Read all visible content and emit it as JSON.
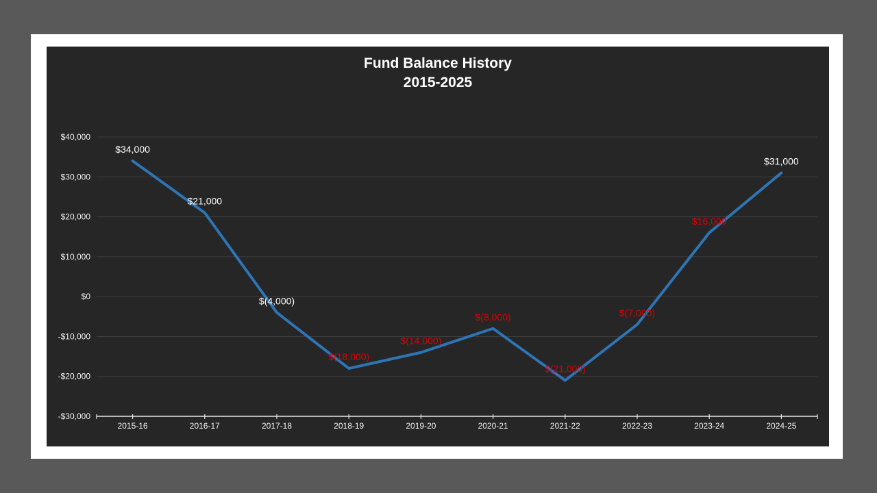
{
  "colors": {
    "page_background": "#595959",
    "frame": "#ffffff",
    "chart_background": "#262626",
    "gridline": "#3f3f3f",
    "axis_line": "#e8e8e8",
    "axis_text": "#f2f2f2",
    "title_text": "#ffffff",
    "series_line": "#2e75b6",
    "label_white": "#ffffff",
    "label_red": "#e00000"
  },
  "chart_data": {
    "type": "line",
    "title": "Fund Balance History",
    "subtitle": "2015-2025",
    "categories": [
      "2015-16",
      "2016-17",
      "2017-18",
      "2018-19",
      "2019-20",
      "2020-21",
      "2021-22",
      "2022-23",
      "2023-24",
      "2024-25"
    ],
    "series": [
      {
        "name": "Fund Balance",
        "color": "#2e75b6",
        "values": [
          34000,
          21000,
          -4000,
          -18000,
          -14000,
          -8000,
          -21000,
          -7000,
          16000,
          31000
        ],
        "data_labels": [
          {
            "text": "$34,000",
            "color": "#ffffff"
          },
          {
            "text": "$21,000",
            "color": "#ffffff"
          },
          {
            "text": "$(4,000)",
            "color": "#ffffff"
          },
          {
            "text": "$(18,000)",
            "color": "#e00000"
          },
          {
            "text": "$(14,000)",
            "color": "#e00000"
          },
          {
            "text": "$(8,000)",
            "color": "#e00000"
          },
          {
            "text": "$(21,000)",
            "color": "#e00000"
          },
          {
            "text": "$(7,000)",
            "color": "#e00000"
          },
          {
            "text": "$16,000",
            "color": "#e00000"
          },
          {
            "text": "$31,000",
            "color": "#ffffff"
          }
        ]
      }
    ],
    "y_axis": {
      "ylim": [
        -30000,
        40000
      ],
      "ticks": [
        {
          "label": "$40,000",
          "value": 40000
        },
        {
          "label": "$30,000",
          "value": 30000
        },
        {
          "label": "$20,000",
          "value": 20000
        },
        {
          "label": "$10,000",
          "value": 10000
        },
        {
          "label": "$0",
          "value": 0
        },
        {
          "label": "-$10,000",
          "value": -10000
        },
        {
          "label": "-$20,000",
          "value": -20000
        },
        {
          "label": "-$30,000",
          "value": -30000
        }
      ]
    },
    "grid": true,
    "legend": "none"
  }
}
